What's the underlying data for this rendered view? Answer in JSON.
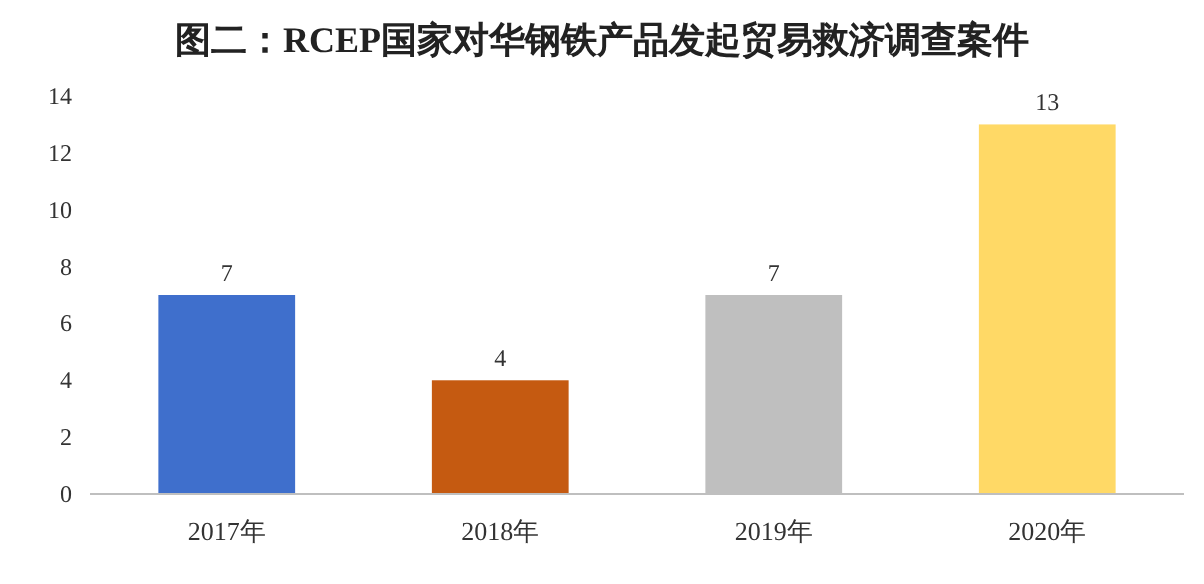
{
  "chart_data": {
    "type": "bar",
    "title": "图二：RCEP国家对华钢铁产品发起贸易救济调查案件",
    "categories": [
      "2017年",
      "2018年",
      "2019年",
      "2020年"
    ],
    "values": [
      7,
      4,
      7,
      13
    ],
    "colors": [
      "#3f6fcc",
      "#c55a11",
      "#bfbfbf",
      "#ffd966"
    ],
    "ylim": [
      0,
      14
    ],
    "yticks": [
      0,
      2,
      4,
      6,
      8,
      10,
      12,
      14
    ],
    "data_labels": true
  }
}
